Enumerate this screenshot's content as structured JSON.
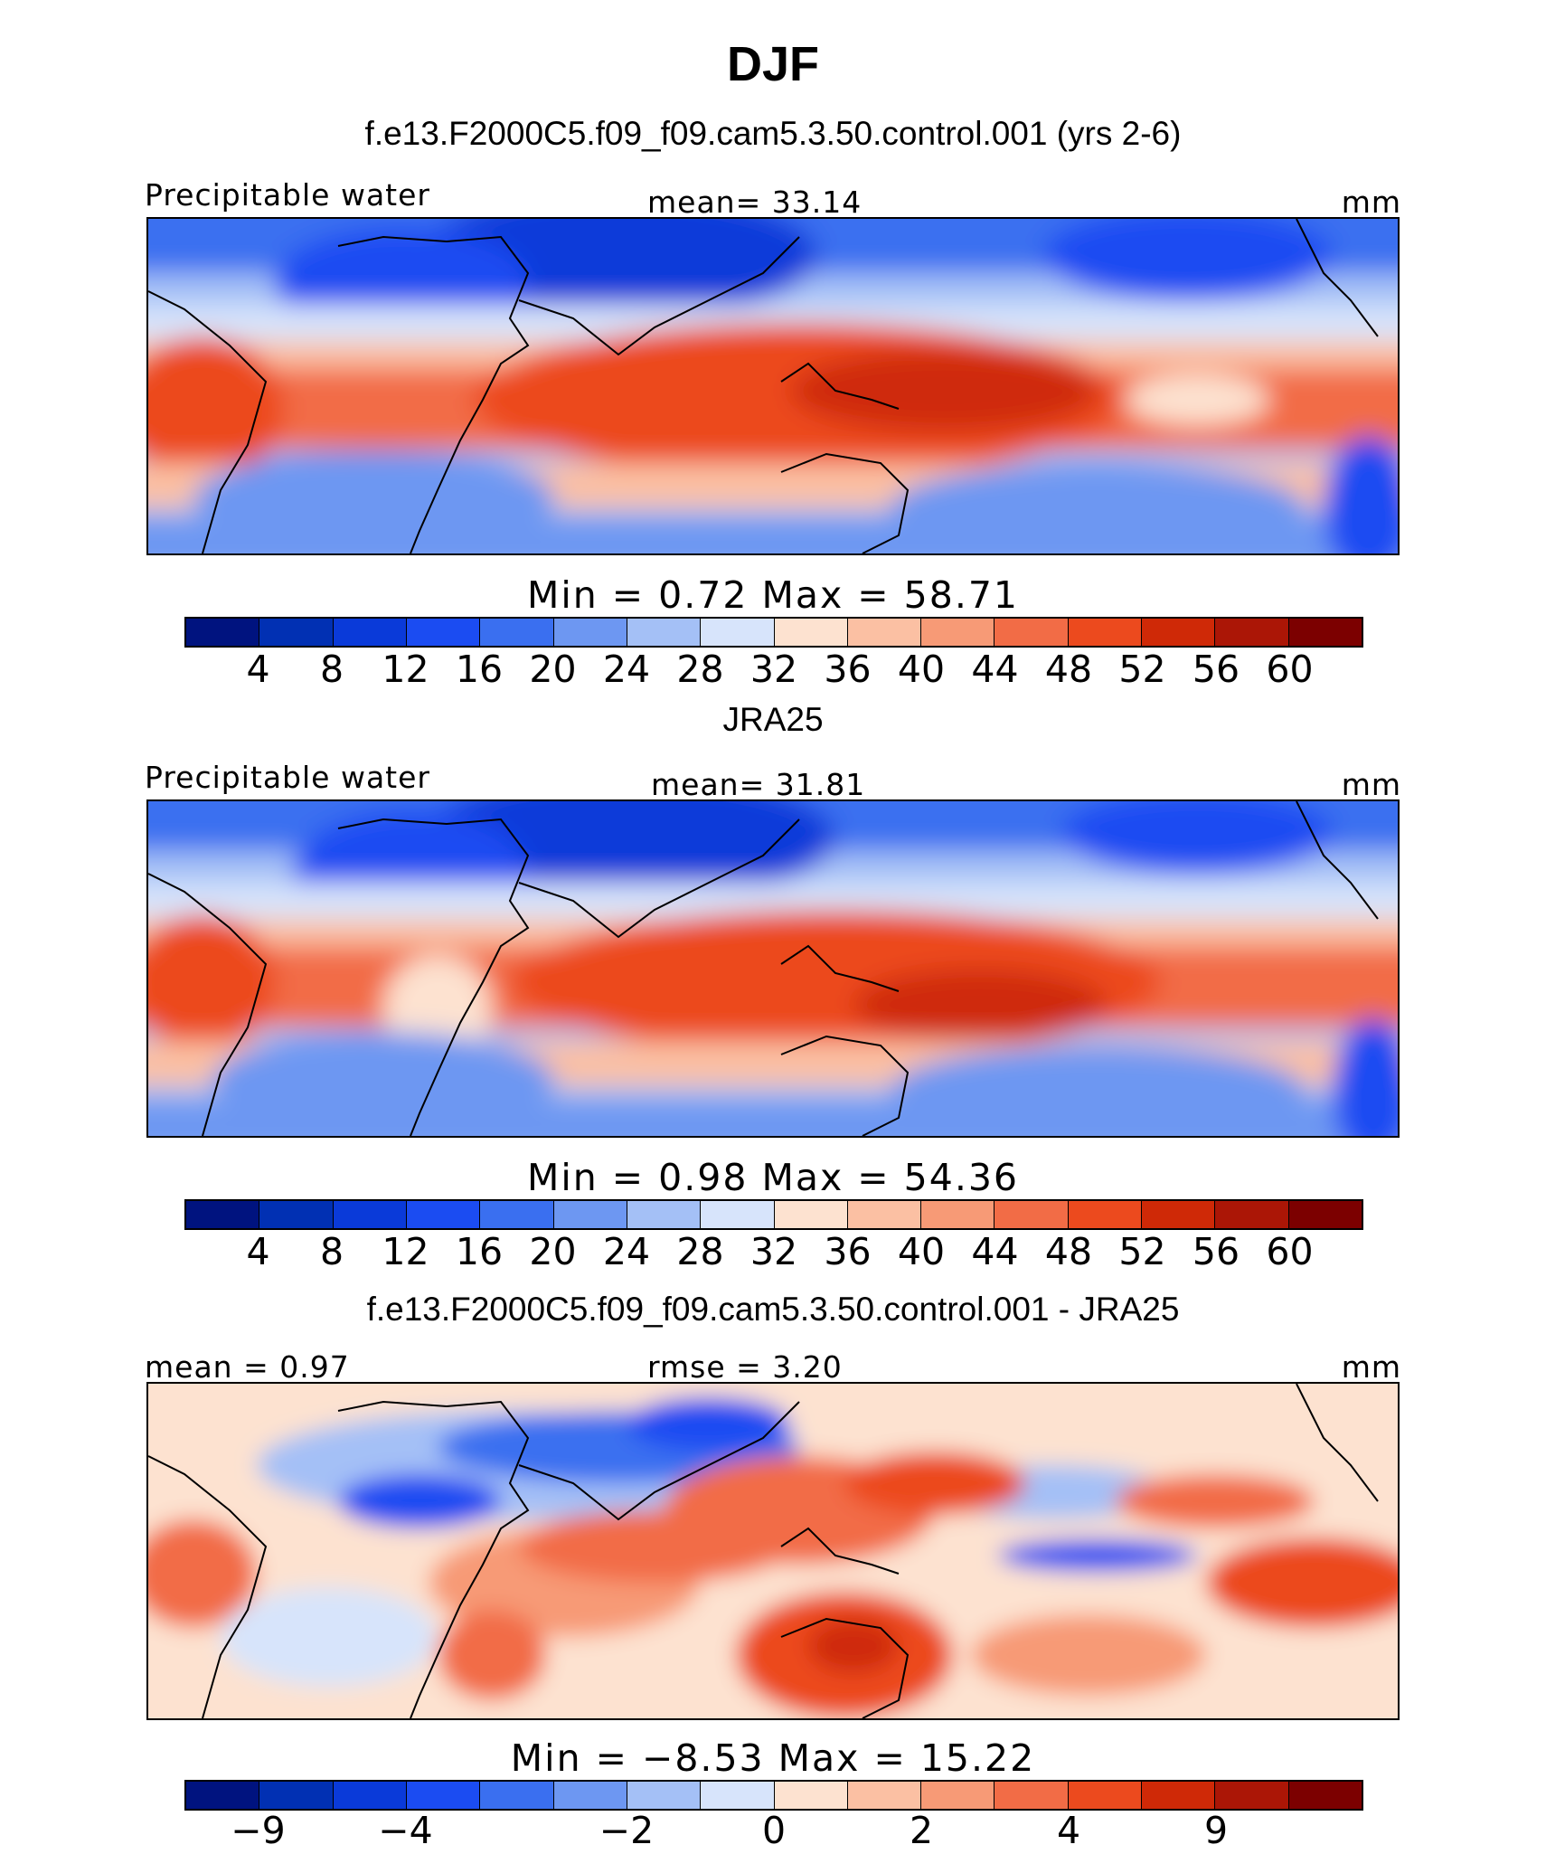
{
  "figure": {
    "title": "DJF"
  },
  "panels": [
    {
      "title": "f.e13.F2000C5.f09_f09.cam5.3.50.control.001 (yrs 2-6)",
      "left_label": "Precipitable water",
      "center_label": "mean=   33.14",
      "right_label": "mm",
      "min_max": "Min  =     0.72  Max  =   58.71"
    },
    {
      "title": "JRA25",
      "left_label": "Precipitable water",
      "center_label": "mean=   31.81",
      "right_label": "mm",
      "min_max": "Min  =     0.98  Max  =   54.36"
    },
    {
      "title": "f.e13.F2000C5.f09_f09.cam5.3.50.control.001 - JRA25",
      "left_label": "mean  =    0.97",
      "center_label": "rmse  =    3.20",
      "right_label": "mm",
      "min_max": "Min  =   −8.53  Max  =   15.22"
    }
  ],
  "chart_data": [
    {
      "type": "heatmap",
      "title": "f.e13.F2000C5.f09_f09.cam5.3.50.control.001 (yrs 2-6)",
      "field": "Precipitable water",
      "units": "mm",
      "mean": 33.14,
      "min": 0.72,
      "max": 58.71,
      "colorbar_ticks": [
        "4",
        "8",
        "12",
        "16",
        "20",
        "24",
        "28",
        "32",
        "36",
        "40",
        "44",
        "48",
        "52",
        "56",
        "60"
      ],
      "colors": [
        "#00137f",
        "#0130b3",
        "#0a3ad9",
        "#1b4cf2",
        "#3a6ff0",
        "#6d97f2",
        "#a4c0f6",
        "#d7e4fb",
        "#fde2d0",
        "#fbc0a3",
        "#f79a76",
        "#f26c46",
        "#ec4a1e",
        "#cf2907",
        "#ab1606",
        "#7c0000"
      ]
    },
    {
      "type": "heatmap",
      "title": "JRA25",
      "field": "Precipitable water",
      "units": "mm",
      "mean": 31.81,
      "min": 0.98,
      "max": 54.36,
      "colorbar_ticks": [
        "4",
        "8",
        "12",
        "16",
        "20",
        "24",
        "28",
        "32",
        "36",
        "40",
        "44",
        "48",
        "52",
        "56",
        "60"
      ],
      "colors": [
        "#00137f",
        "#0130b3",
        "#0a3ad9",
        "#1b4cf2",
        "#3a6ff0",
        "#6d97f2",
        "#a4c0f6",
        "#d7e4fb",
        "#fde2d0",
        "#fbc0a3",
        "#f79a76",
        "#f26c46",
        "#ec4a1e",
        "#cf2907",
        "#ab1606",
        "#7c0000"
      ]
    },
    {
      "type": "heatmap",
      "title": "f.e13.F2000C5.f09_f09.cam5.3.50.control.001 - JRA25",
      "units": "mm",
      "mean": 0.97,
      "rmse": 3.2,
      "min": -8.53,
      "max": 15.22,
      "colorbar_ticks": [
        "−9",
        "−4",
        "−2",
        "0",
        "2",
        "4",
        "9"
      ],
      "colors": [
        "#00137f",
        "#0130b3",
        "#0a3ad9",
        "#1b4cf2",
        "#3a6ff0",
        "#6d97f2",
        "#a4c0f6",
        "#d7e4fb",
        "#fde2d0",
        "#fbc0a3",
        "#f79a76",
        "#f26c46",
        "#ec4a1e",
        "#cf2907",
        "#ab1606",
        "#7c0000"
      ]
    }
  ]
}
